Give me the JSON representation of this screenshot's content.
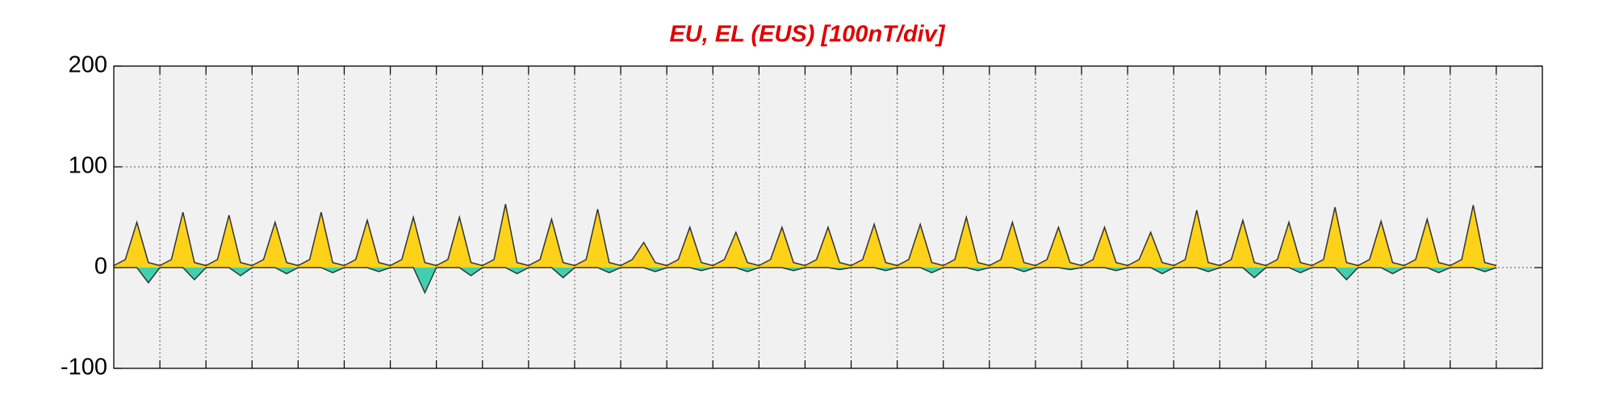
{
  "chart_data": {
    "type": "area",
    "title": "EU, EL (EUS)  [100nT/div]",
    "x": [
      0,
      0.25,
      0.5,
      0.75,
      1,
      1.25,
      1.5,
      1.75,
      2,
      2.25,
      2.5,
      2.75,
      3,
      3.25,
      3.5,
      3.75,
      4,
      4.25,
      4.5,
      4.75,
      5,
      5.25,
      5.5,
      5.75,
      6,
      6.25,
      6.5,
      6.75,
      7,
      7.25,
      7.5,
      7.75,
      8,
      8.25,
      8.5,
      8.75,
      9,
      9.25,
      9.5,
      9.75,
      10,
      10.25,
      10.5,
      10.75,
      11,
      11.25,
      11.5,
      11.75,
      12,
      12.25,
      12.5,
      12.75,
      13,
      13.25,
      13.5,
      13.75,
      14,
      14.25,
      14.5,
      14.75,
      15,
      15.25,
      15.5,
      15.75,
      16,
      16.25,
      16.5,
      16.75,
      17,
      17.25,
      17.5,
      17.75,
      18,
      18.25,
      18.5,
      18.75,
      19,
      19.25,
      19.5,
      19.75,
      20,
      20.25,
      20.5,
      20.75,
      21,
      21.25,
      21.5,
      21.75,
      22,
      22.25,
      22.5,
      22.75,
      23,
      23.25,
      23.5,
      23.75,
      24,
      24.25,
      24.5,
      24.75,
      25,
      25.25,
      25.5,
      25.75,
      26,
      26.25,
      26.5,
      26.75,
      27,
      27.25,
      27.5,
      27.75,
      28,
      28.25,
      28.5,
      28.75,
      29,
      29.25,
      29.5,
      29.75,
      30
    ],
    "series": [
      {
        "color": "#ffd21a",
        "values": [
          2,
          8,
          45,
          5,
          2,
          8,
          55,
          5,
          2,
          8,
          52,
          5,
          2,
          8,
          45,
          5,
          2,
          8,
          55,
          5,
          2,
          8,
          47,
          5,
          2,
          8,
          50,
          5,
          2,
          8,
          50,
          5,
          2,
          8,
          63,
          5,
          2,
          8,
          48,
          5,
          2,
          8,
          58,
          5,
          2,
          8,
          25,
          5,
          2,
          8,
          40,
          5,
          2,
          8,
          35,
          5,
          2,
          8,
          40,
          5,
          2,
          8,
          40,
          5,
          2,
          8,
          43,
          5,
          2,
          8,
          43,
          5,
          2,
          8,
          50,
          5,
          2,
          8,
          45,
          5,
          2,
          8,
          40,
          5,
          2,
          8,
          40,
          5,
          2,
          8,
          35,
          5,
          2,
          8,
          57,
          5,
          2,
          8,
          47,
          5,
          2,
          8,
          45,
          5,
          2,
          8,
          60,
          5,
          2,
          8,
          46,
          5,
          2,
          8,
          48,
          5,
          2,
          8,
          62,
          5,
          2
        ]
      },
      {
        "color": "#40d0b0",
        "values": [
          0,
          0,
          0,
          -15,
          0,
          0,
          0,
          -12,
          0,
          0,
          0,
          -8,
          0,
          0,
          0,
          -6,
          0,
          0,
          0,
          -5,
          0,
          0,
          0,
          -4,
          0,
          0,
          0,
          -25,
          0,
          0,
          0,
          -8,
          0,
          0,
          0,
          -6,
          0,
          0,
          0,
          -10,
          0,
          0,
          0,
          -5,
          0,
          0,
          0,
          -4,
          0,
          0,
          0,
          -3,
          0,
          0,
          0,
          -4,
          0,
          0,
          0,
          -3,
          0,
          0,
          0,
          -2,
          0,
          0,
          0,
          -3,
          0,
          0,
          0,
          -5,
          0,
          0,
          0,
          -3,
          0,
          0,
          0,
          -4,
          0,
          0,
          0,
          -2,
          0,
          0,
          0,
          -3,
          0,
          0,
          0,
          -6,
          0,
          0,
          0,
          -4,
          0,
          0,
          0,
          -10,
          0,
          0,
          0,
          -5,
          0,
          0,
          0,
          -12,
          0,
          0,
          0,
          -6,
          0,
          0,
          0,
          -5,
          0,
          0,
          0,
          -4,
          0
        ]
      }
    ],
    "xlim": [
      0,
      31
    ],
    "xticks": [
      1,
      2,
      3,
      4,
      5,
      6,
      7,
      8,
      9,
      10,
      11,
      12,
      13,
      14,
      15,
      16,
      17,
      18,
      19,
      20,
      21,
      22,
      23,
      24,
      25,
      26,
      27,
      28,
      29,
      30
    ],
    "ylim": [
      -100,
      200
    ],
    "yticks": [
      -100,
      0,
      100,
      200
    ],
    "grid": true
  }
}
